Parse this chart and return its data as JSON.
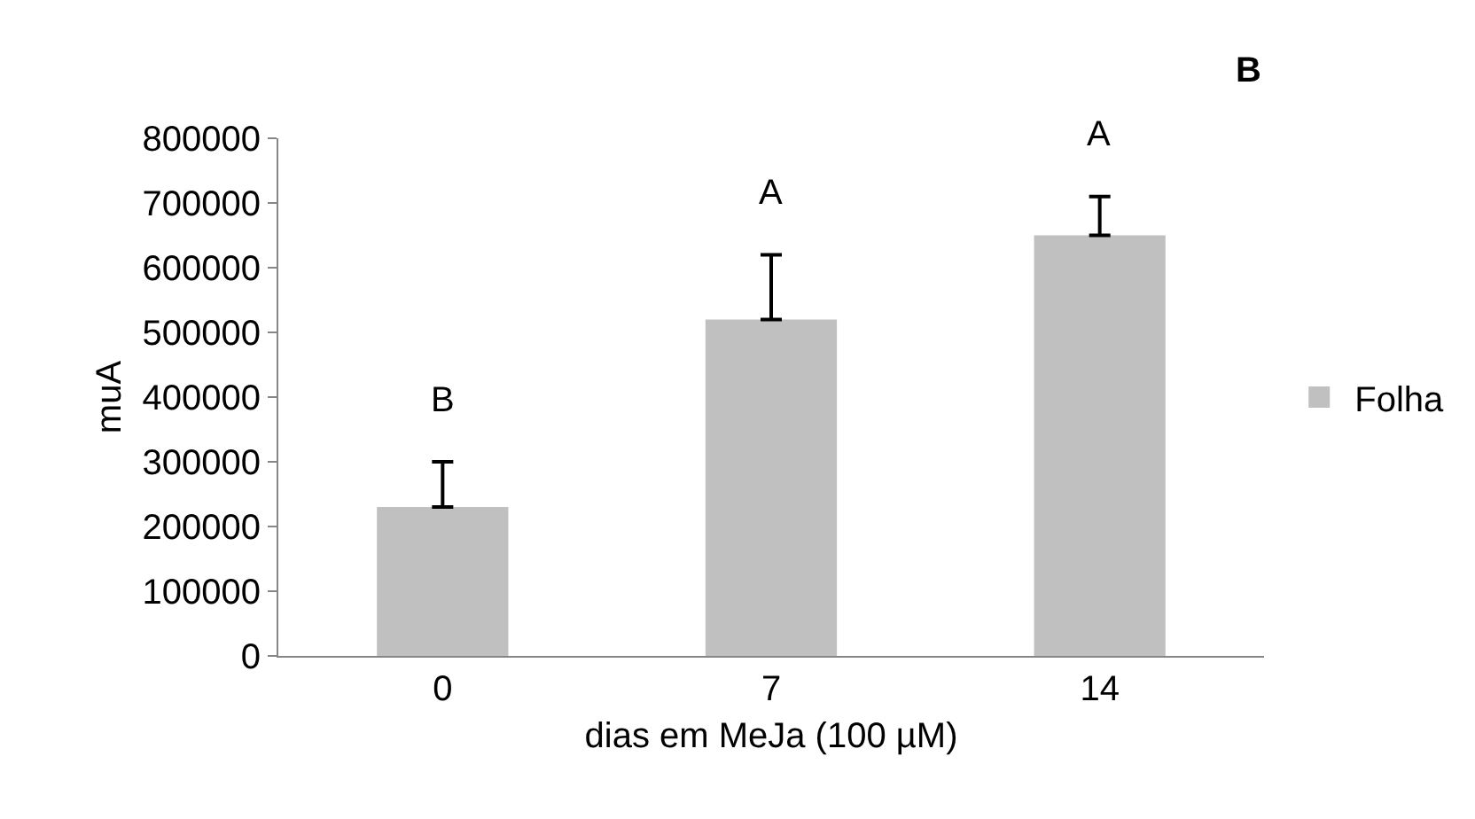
{
  "chart_data": {
    "type": "bar",
    "xlabel": "dias em MeJa (100 µM)",
    "ylabel": "muA",
    "categories": [
      "0",
      "7",
      "14"
    ],
    "series": [
      {
        "name": "Folha",
        "color": "#c0c0c0",
        "values": [
          230000,
          520000,
          650000
        ],
        "errors": [
          [
            230000,
            300000
          ],
          [
            520000,
            620000
          ],
          [
            650000,
            710000
          ]
        ]
      }
    ],
    "ylim": [
      0,
      800000
    ],
    "yticks": [
      0,
      100000,
      200000,
      300000,
      400000,
      500000,
      600000,
      700000,
      800000
    ],
    "grid": false,
    "legend": "right",
    "annotations": [
      "B",
      "A",
      "A",
      "B"
    ]
  }
}
